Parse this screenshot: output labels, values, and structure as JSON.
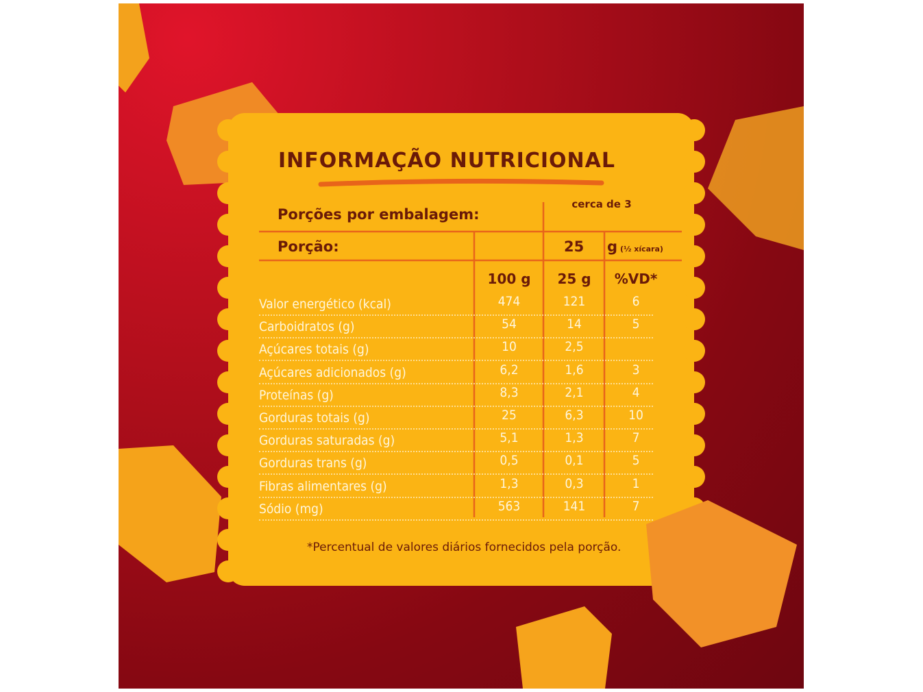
{
  "title": "INFORMAÇÃO NUTRICIONAL",
  "servings": {
    "label": "Porções por embalagem:",
    "value": "cerca de 3"
  },
  "portion": {
    "label": "Porção:",
    "value": "25",
    "unit": "g",
    "note": "(½ xícara)"
  },
  "columns": [
    "100 g",
    "25 g",
    "%VD*"
  ],
  "rows": [
    [
      "Valor energético (kcal)",
      "474",
      "121",
      "6"
    ],
    [
      "Carboidratos (g)",
      "54",
      "14",
      "5"
    ],
    [
      "Açúcares totais (g)",
      "10",
      "2,5",
      null
    ],
    [
      "Açúcares adicionados (g)",
      "6,2",
      "1,6",
      "3"
    ],
    [
      "Proteínas (g)",
      "8,3",
      "2,1",
      "4"
    ],
    [
      "Gorduras totais (g)",
      "25",
      "6,3",
      "10"
    ],
    [
      "Gorduras saturadas (g)",
      "5,1",
      "1,3",
      "7"
    ],
    [
      "Gorduras trans (g)",
      "0,5",
      "0,1",
      "5"
    ],
    [
      "Fibras alimentares (g)",
      "1,3",
      "0,3",
      "1"
    ],
    [
      "Sódio (mg)",
      "563",
      "141",
      "7"
    ]
  ],
  "footnote": "*Percentual de valores diários fornecidos pela porção."
}
